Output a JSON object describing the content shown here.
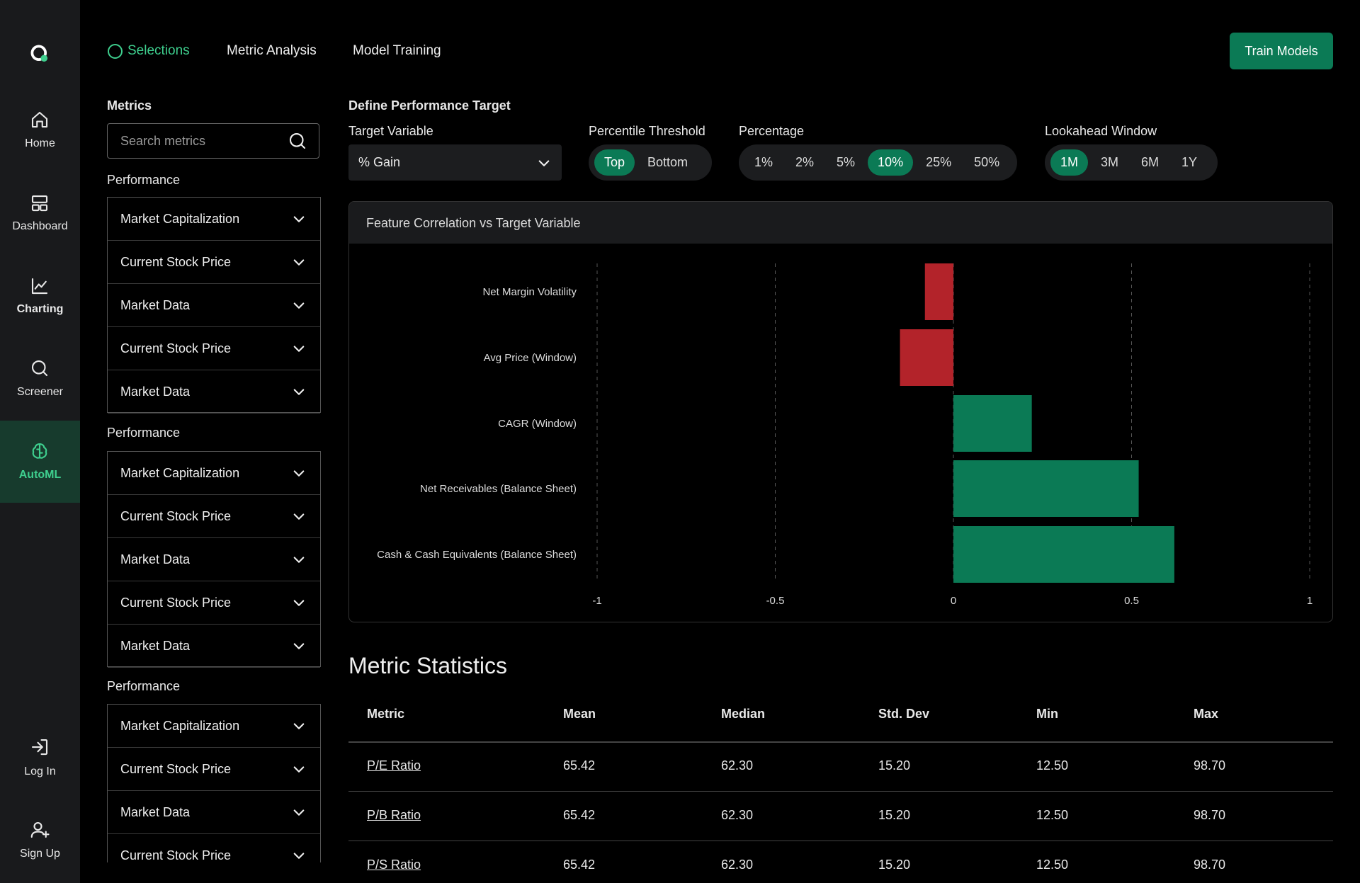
{
  "nav": {
    "items": [
      "Home",
      "Dashboard",
      "Charting",
      "Screener",
      "AutoML"
    ],
    "active": 4,
    "bottom": [
      "Log In",
      "Sign Up"
    ]
  },
  "tabs": {
    "items": [
      "Selections",
      "Metric Analysis",
      "Model Training"
    ],
    "active": 0
  },
  "action": "Train Models",
  "sidebar": {
    "title": "Metrics",
    "search_placeholder": "Search metrics",
    "groups": [
      {
        "label": "Performance",
        "items": [
          "Market Capitalization",
          "Current Stock Price",
          "Market Data",
          "Current Stock Price",
          "Market Data"
        ]
      },
      {
        "label": "Performance",
        "items": [
          "Market Capitalization",
          "Current Stock Price",
          "Market Data",
          "Current Stock Price",
          "Market Data"
        ]
      },
      {
        "label": "Performance",
        "items": [
          "Market Capitalization",
          "Current Stock Price",
          "Market Data",
          "Current Stock Price"
        ]
      }
    ]
  },
  "target": {
    "title": "Define Performance Target",
    "target_variable": {
      "label": "Target Variable",
      "value": "% Gain"
    },
    "percentile": {
      "label": "Percentile Threshold",
      "options": [
        "Top",
        "Bottom"
      ],
      "active": 0
    },
    "percentage": {
      "label": "Percentage",
      "options": [
        "1%",
        "2%",
        "5%",
        "10%",
        "25%",
        "50%"
      ],
      "active": 3
    },
    "lookahead": {
      "label": "Lookahead Window",
      "options": [
        "1M",
        "3M",
        "6M",
        "1Y"
      ],
      "active": 0
    }
  },
  "chart_data": {
    "type": "bar",
    "orientation": "horizontal",
    "title": "Feature Correlation vs Target Variable",
    "categories": [
      "Net Margin Volatility",
      "Avg Price (Window)",
      "CAGR (Window)",
      "Net Receivables (Balance Sheet)",
      "Cash & Cash Equivalents (Balance Sheet)"
    ],
    "values": [
      -0.08,
      -0.15,
      0.22,
      0.52,
      0.62
    ],
    "colors": {
      "positive": "#0b7a55",
      "negative": "#b3232a"
    },
    "xlim": [
      -1,
      1
    ],
    "xticks": [
      -1,
      -0.5,
      0,
      0.5,
      1
    ],
    "grid": true
  },
  "statistics": {
    "title": "Metric Statistics",
    "columns": [
      "Metric",
      "Mean",
      "Median",
      "Std. Dev",
      "Min",
      "Max"
    ],
    "rows": [
      [
        "P/E Ratio",
        "65.42",
        "62.30",
        "15.20",
        "12.50",
        "98.70"
      ],
      [
        "P/B Ratio",
        "65.42",
        "62.30",
        "15.20",
        "12.50",
        "98.70"
      ],
      [
        "P/S Ratio",
        "65.42",
        "62.30",
        "15.20",
        "12.50",
        "98.70"
      ]
    ]
  }
}
